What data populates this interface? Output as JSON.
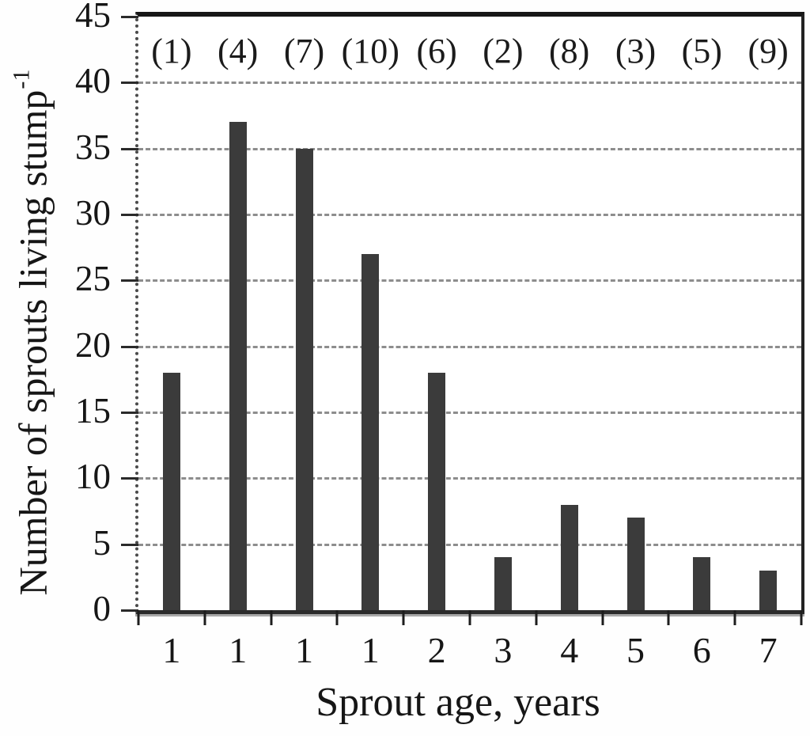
{
  "chart_data": {
    "type": "bar",
    "title": "",
    "xlabel": "Sprout age, years",
    "ylabel": "Number of sprouts living stump",
    "ylabel_superscript": "-1",
    "categories": [
      "1",
      "1",
      "1",
      "1",
      "2",
      "3",
      "4",
      "5",
      "6",
      "7"
    ],
    "values": [
      18,
      37,
      35,
      27,
      18,
      4,
      8,
      7,
      4,
      3
    ],
    "bar_group_labels": [
      "(1)",
      "(4)",
      "(7)",
      "(10)",
      "(6)",
      "(2)",
      "(8)",
      "(3)",
      "(5)",
      "(9)"
    ],
    "y_ticks": [
      0,
      5,
      10,
      15,
      20,
      25,
      30,
      35,
      40,
      45
    ],
    "ylim": [
      0,
      45
    ],
    "grid": "horizontal-dashed",
    "legend": "none",
    "bar_color": "#3b3b3b",
    "gridline_color": "#8d8d8d",
    "frame_color": "#171717",
    "text_color": "#161616",
    "background_color": "#ffffff"
  }
}
